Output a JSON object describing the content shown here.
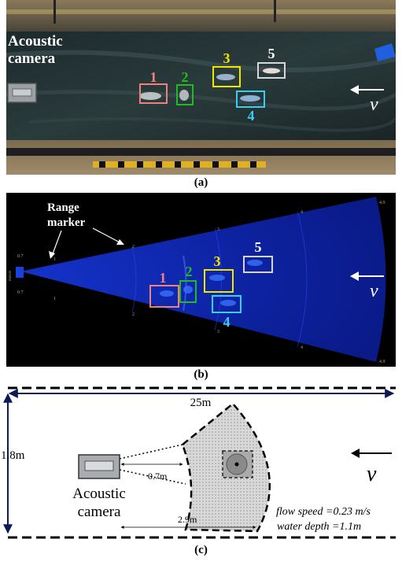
{
  "panel_a": {
    "camera_label_line1": "Acoustic",
    "camera_label_line2": "camera",
    "boxes": [
      {
        "label": "1",
        "color": "#f08080"
      },
      {
        "label": "2",
        "color": "#22bb22"
      },
      {
        "label": "3",
        "color": "#f2e600"
      },
      {
        "label": "4",
        "color": "#38d0f0"
      },
      {
        "label": "5",
        "color": "#d8d8d8"
      }
    ],
    "flow_symbol": "v",
    "caption": "(a)"
  },
  "panel_b": {
    "range_marker_line1": "Range",
    "range_marker_line2": "marker",
    "boxes": [
      {
        "label": "1",
        "color": "#f08080"
      },
      {
        "label": "2",
        "color": "#22bb22"
      },
      {
        "label": "3",
        "color": "#f2e600"
      },
      {
        "label": "4",
        "color": "#38d0f0"
      },
      {
        "label": "5",
        "color": "#d8d8d8"
      }
    ],
    "tick_values": [
      "0.7",
      "0.7",
      "1",
      "1",
      "2",
      "2",
      "3",
      "3",
      "4",
      "4",
      "4.9",
      "4.9"
    ],
    "axis_unit": "meters",
    "flow_symbol": "v",
    "caption": "(b)"
  },
  "panel_c": {
    "length_label": "25m",
    "width_label": "1.8m",
    "near_range_label": "0.7m",
    "far_range_label": "2.9m",
    "camera_label_line1": "Acoustic",
    "camera_label_line2": "camera",
    "flow_speed_text": "flow speed =0.23 m/s",
    "water_depth_text": "water depth =1.1m",
    "flow_symbol": "v",
    "caption": "(c)"
  }
}
